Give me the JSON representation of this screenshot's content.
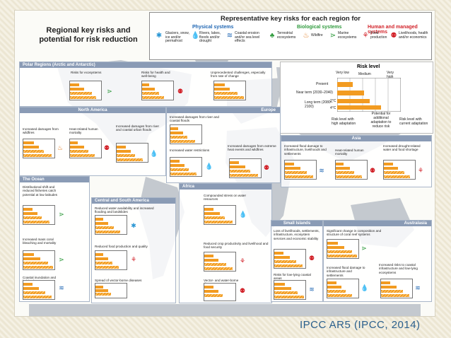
{
  "title": "Regional key risks and potential for risk reduction",
  "legend": {
    "title": "Representative key risks for each region for",
    "categories": [
      {
        "label": "Physical systems",
        "color": "#1f66b3"
      },
      {
        "label": "Biological systems",
        "color": "#2e9a3c"
      },
      {
        "label": "Human and managed systems",
        "color": "#d2232a"
      }
    ],
    "items": [
      {
        "label": "Glaciers, snow, ice and/or permafrost",
        "icon": "snowflake-icon",
        "glyph": "✱",
        "color": "#2a96d4"
      },
      {
        "label": "Rivers, lakes, floods and/or drought",
        "icon": "water-drop-icon",
        "glyph": "💧",
        "color": "#1f66b3"
      },
      {
        "label": "Coastal erosion and/or sea level effects",
        "icon": "wave-icon",
        "glyph": "≋",
        "color": "#1f66b3"
      },
      {
        "label": "Terrestrial ecosystems",
        "icon": "tree-icon",
        "glyph": "♣",
        "color": "#2e9a3c"
      },
      {
        "label": "Wildfire",
        "icon": "fire-icon",
        "glyph": "♨",
        "color": "#e07a1f"
      },
      {
        "label": "Marine ecosystems",
        "icon": "fish-icon",
        "glyph": "⋗",
        "color": "#2e9a3c"
      },
      {
        "label": "Food production",
        "icon": "wheat-icon",
        "glyph": "⚘",
        "color": "#d2232a"
      },
      {
        "label": "Livelihoods, health and/or economics",
        "icon": "people-icon",
        "glyph": "⚉",
        "color": "#d2232a"
      }
    ]
  },
  "risk_level": {
    "title": "Risk level",
    "scale": [
      "Very low",
      "Medium",
      "Very high"
    ],
    "rows": [
      "Present",
      "Near term (2030–2040)",
      "Long term (2080–2100)"
    ],
    "long_term_marks": [
      "2°C",
      "4°C"
    ],
    "notes": [
      "Risk level with high adaptation",
      "Potential for additional adaptation to reduce risk",
      "Risk level with current adaptation"
    ]
  },
  "regions": [
    {
      "name": "Polar Regions (Arctic and Antarctic)",
      "risks": [
        {
          "label": "Risks for ecosystems"
        },
        {
          "label": "Risks for health and well-being"
        },
        {
          "label": "Unprecedented challenges, especially from rate of change"
        }
      ]
    },
    {
      "name": "North America",
      "risks": [
        {
          "label": "Increased damages from wildfires"
        },
        {
          "label": "Heat-related human mortality"
        },
        {
          "label": "Increased damages from river and coastal urban floods"
        }
      ]
    },
    {
      "name": "Europe",
      "risks": [
        {
          "label": "Increased damages from river and coastal floods"
        },
        {
          "label": "Increased water restrictions"
        },
        {
          "label": "Increased damages from extreme heat events and wildfires"
        }
      ]
    },
    {
      "name": "Asia",
      "risks": [
        {
          "label": "Increased flood damage to infrastructure, livelihoods and settlements"
        },
        {
          "label": "Heat-related human mortality"
        },
        {
          "label": "Increased drought-related water and food shortage"
        }
      ]
    },
    {
      "name": "The Ocean",
      "risks": [
        {
          "label": "Distributional shift and reduced fisheries catch potential at low latitudes"
        },
        {
          "label": "Increased mass coral bleaching and mortality"
        },
        {
          "label": "Coastal inundation and habitat loss"
        }
      ]
    },
    {
      "name": "Central and South America",
      "risks": [
        {
          "label": "Reduced water availability and increased flooding and landslides"
        },
        {
          "label": "Reduced food production and quality"
        },
        {
          "label": "Spread of vector-borne diseases"
        }
      ]
    },
    {
      "name": "Africa",
      "risks": [
        {
          "label": "Compounded stress on water resources"
        },
        {
          "label": "Reduced crop productivity and livelihood and food security"
        },
        {
          "label": "Vector- and water-borne diseases"
        }
      ]
    },
    {
      "name": "Small Islands",
      "risks": [
        {
          "label": "Loss of livelihoods, settlements, infrastructure, ecosystem services and economic stability"
        },
        {
          "label": "Risks for low-lying coastal areas"
        }
      ]
    },
    {
      "name": "Australasia",
      "risks": [
        {
          "label": "Significant change in composition and structure of coral reef systems"
        },
        {
          "label": "Increased flood damage to infrastructure and settlements"
        },
        {
          "label": "Increased risks to coastal infrastructure and low-lying ecosystems"
        }
      ]
    }
  ],
  "colors": {
    "risk_orange": "#f29b21",
    "region_header": "#8a9bb5",
    "map_land": "#c4c9cf",
    "citation_blue": "#2a5f8c"
  },
  "citation": "IPCC AR5 (IPCC, 2014)"
}
